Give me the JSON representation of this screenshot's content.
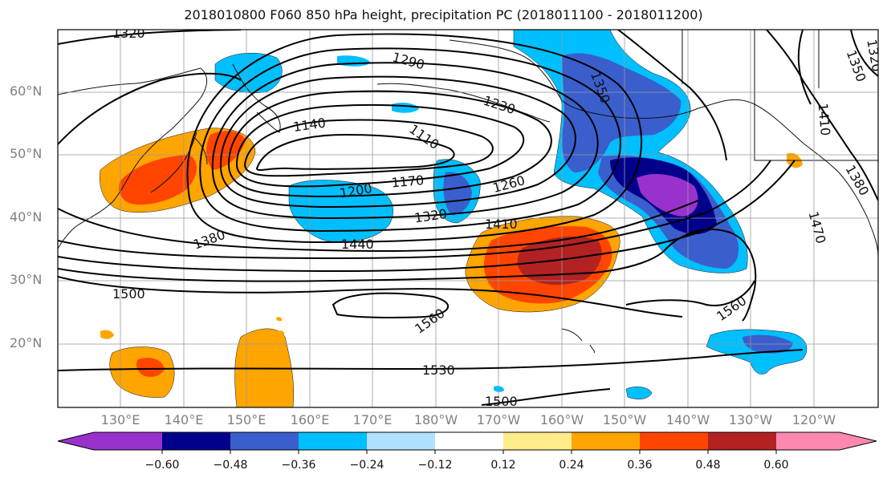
{
  "title": "2018010800 F060 850 hPa height, precipitation PC (2018011100 - 2018011200)",
  "lat_labels": [
    "60°N",
    "50°N",
    "40°N",
    "30°N",
    "20°N"
  ],
  "lon_labels": [
    "130°E",
    "140°E",
    "150°E",
    "160°E",
    "170°E",
    "180°W",
    "170°W",
    "160°W",
    "150°W",
    "140°W",
    "130°W",
    "120°W"
  ],
  "contour_labels": [
    "1320",
    "1290",
    "1230",
    "1350",
    "1320",
    "1350",
    "1140",
    "1110",
    "1410",
    "1380",
    "1200",
    "1170",
    "1260",
    "1470",
    "1320",
    "1410",
    "1380",
    "1440",
    "1500",
    "1560",
    "1560",
    "1530",
    "1500"
  ],
  "colorbar": {
    "ticks": [
      "−0.60",
      "−0.48",
      "−0.36",
      "−0.24",
      "−0.12",
      "0.12",
      "0.24",
      "0.36",
      "0.48",
      "0.60"
    ],
    "colors": [
      "#9932cc",
      "#00008b",
      "#3a5fcd",
      "#00bfff",
      "#b0e2ff",
      "#ffffff",
      "#ffec8b",
      "#ffa500",
      "#ff4500",
      "#b22222",
      "#ff88b0"
    ]
  },
  "shading_colors": {
    "neg_1": "#b0e2ff",
    "neg_2": "#00bfff",
    "neg_3": "#3a5fcd",
    "neg_4": "#00008b",
    "neg_5": "#9932cc",
    "pos_1": "#ffec8b",
    "pos_2": "#ffa500",
    "pos_3": "#ff4500",
    "pos_4": "#b22222"
  }
}
